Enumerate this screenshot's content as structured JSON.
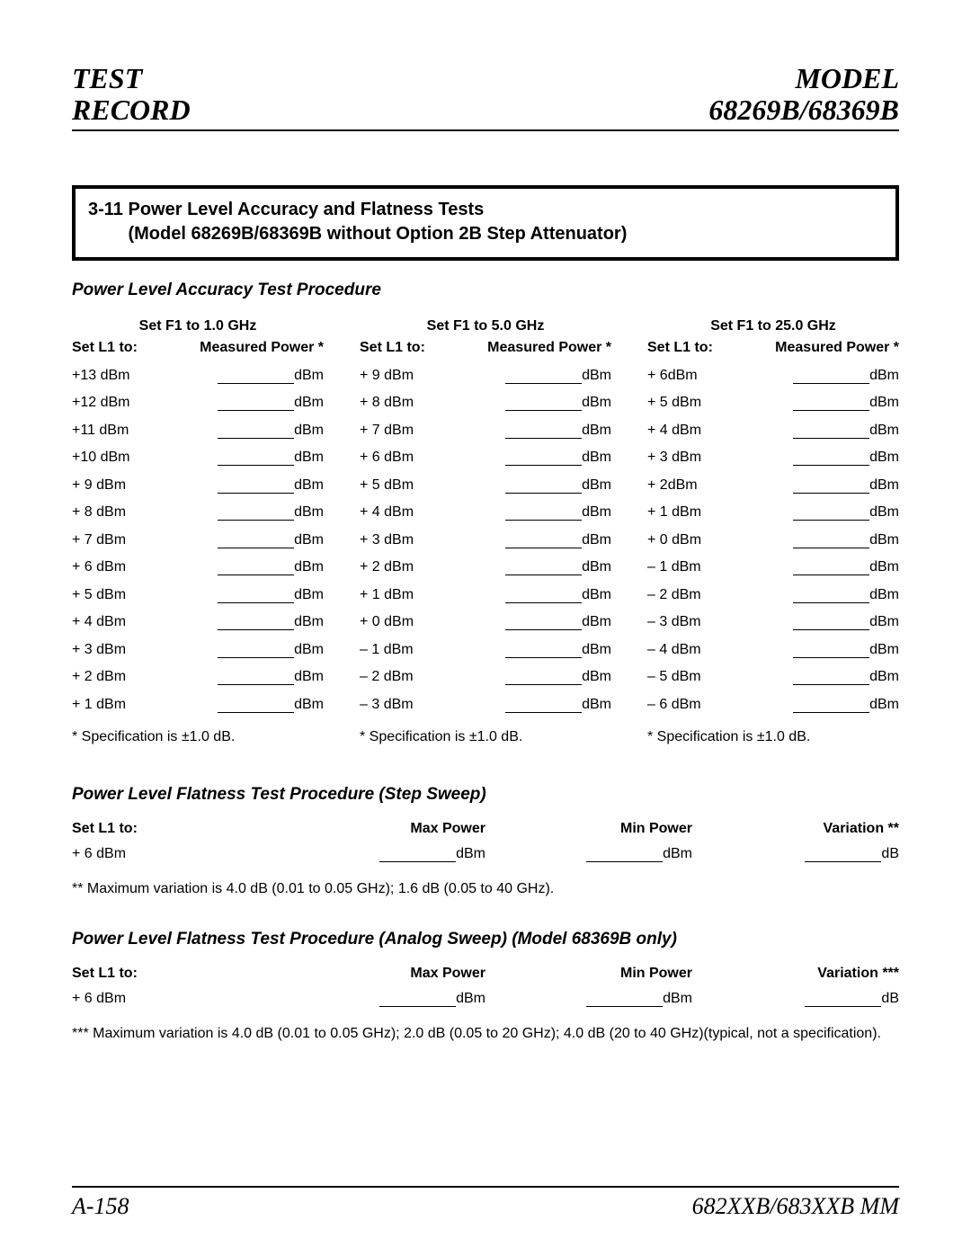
{
  "header": {
    "l1": "TEST",
    "l2": "RECORD",
    "r1": "MODEL",
    "r2": "68269B/68369B"
  },
  "box": {
    "num": "3-11",
    "title": "Power Level Accuracy and Flatness Tests",
    "sub": "(Model 68269B/68369B without Option 2B Step Attenuator)"
  },
  "accuracy": {
    "title": "Power Level Accuracy Test Procedure",
    "hSet": "Set L1 to:",
    "hMeas": "Measured Power *",
    "unit": "dBm",
    "cols": [
      {
        "freq": "Set F1 to 1.0 GHz",
        "spec": "* Specification is ±1.0 dB.",
        "rows": [
          "+13 dBm",
          "+12 dBm",
          "+11 dBm",
          "+10 dBm",
          "+ 9 dBm",
          "+ 8 dBm",
          "+ 7 dBm",
          "+ 6 dBm",
          "+ 5 dBm",
          "+ 4 dBm",
          "+ 3 dBm",
          "+ 2 dBm",
          "+ 1 dBm"
        ]
      },
      {
        "freq": "Set F1 to 5.0 GHz",
        "spec": "* Specification is ±1.0 dB.",
        "rows": [
          "+ 9 dBm",
          "+ 8 dBm",
          "+ 7 dBm",
          "+ 6 dBm",
          "+ 5 dBm",
          "+ 4 dBm",
          "+ 3 dBm",
          "+ 2 dBm",
          "+ 1 dBm",
          "+ 0 dBm",
          "– 1 dBm",
          "– 2 dBm",
          "– 3 dBm"
        ]
      },
      {
        "freq": "Set F1 to 25.0 GHz",
        "spec": "* Specification is ±1.0 dB.",
        "rows": [
          "+ 6dBm",
          "+ 5 dBm",
          "+ 4 dBm",
          "+ 3 dBm",
          "+ 2dBm",
          "+ 1 dBm",
          "+ 0 dBm",
          "– 1 dBm",
          "– 2 dBm",
          "– 3 dBm",
          "– 4 dBm",
          "– 5 dBm",
          "– 6 dBm"
        ]
      }
    ]
  },
  "flatStep": {
    "title": "Power Level Flatness Test Procedure (Step Sweep)",
    "h": {
      "a": "Set L1 to:",
      "b": "Max Power",
      "c": "Min Power",
      "d": "Variation **"
    },
    "row": {
      "a": "+ 6 dBm",
      "u1": "dBm",
      "u2": "dBm",
      "u3": "dB"
    },
    "note": "** Maximum variation is 4.0 dB (0.01 to 0.05 GHz); 1.6 dB (0.05 to 40 GHz)."
  },
  "flatAnalog": {
    "title": "Power Level Flatness Test Procedure (Analog Sweep) (Model 68369B only)",
    "h": {
      "a": "Set L1 to:",
      "b": "Max Power",
      "c": "Min Power",
      "d": "Variation ***"
    },
    "row": {
      "a": "+ 6 dBm",
      "u1": "dBm",
      "u2": "dBm",
      "u3": "dB"
    },
    "note": "*** Maximum variation is 4.0 dB (0.01 to 0.05 GHz); 2.0 dB (0.05 to 20 GHz); 4.0 dB (20 to 40 GHz)(typical, not a specification)."
  },
  "footer": {
    "left": "A-158",
    "right": "682XXB/683XXB MM"
  }
}
